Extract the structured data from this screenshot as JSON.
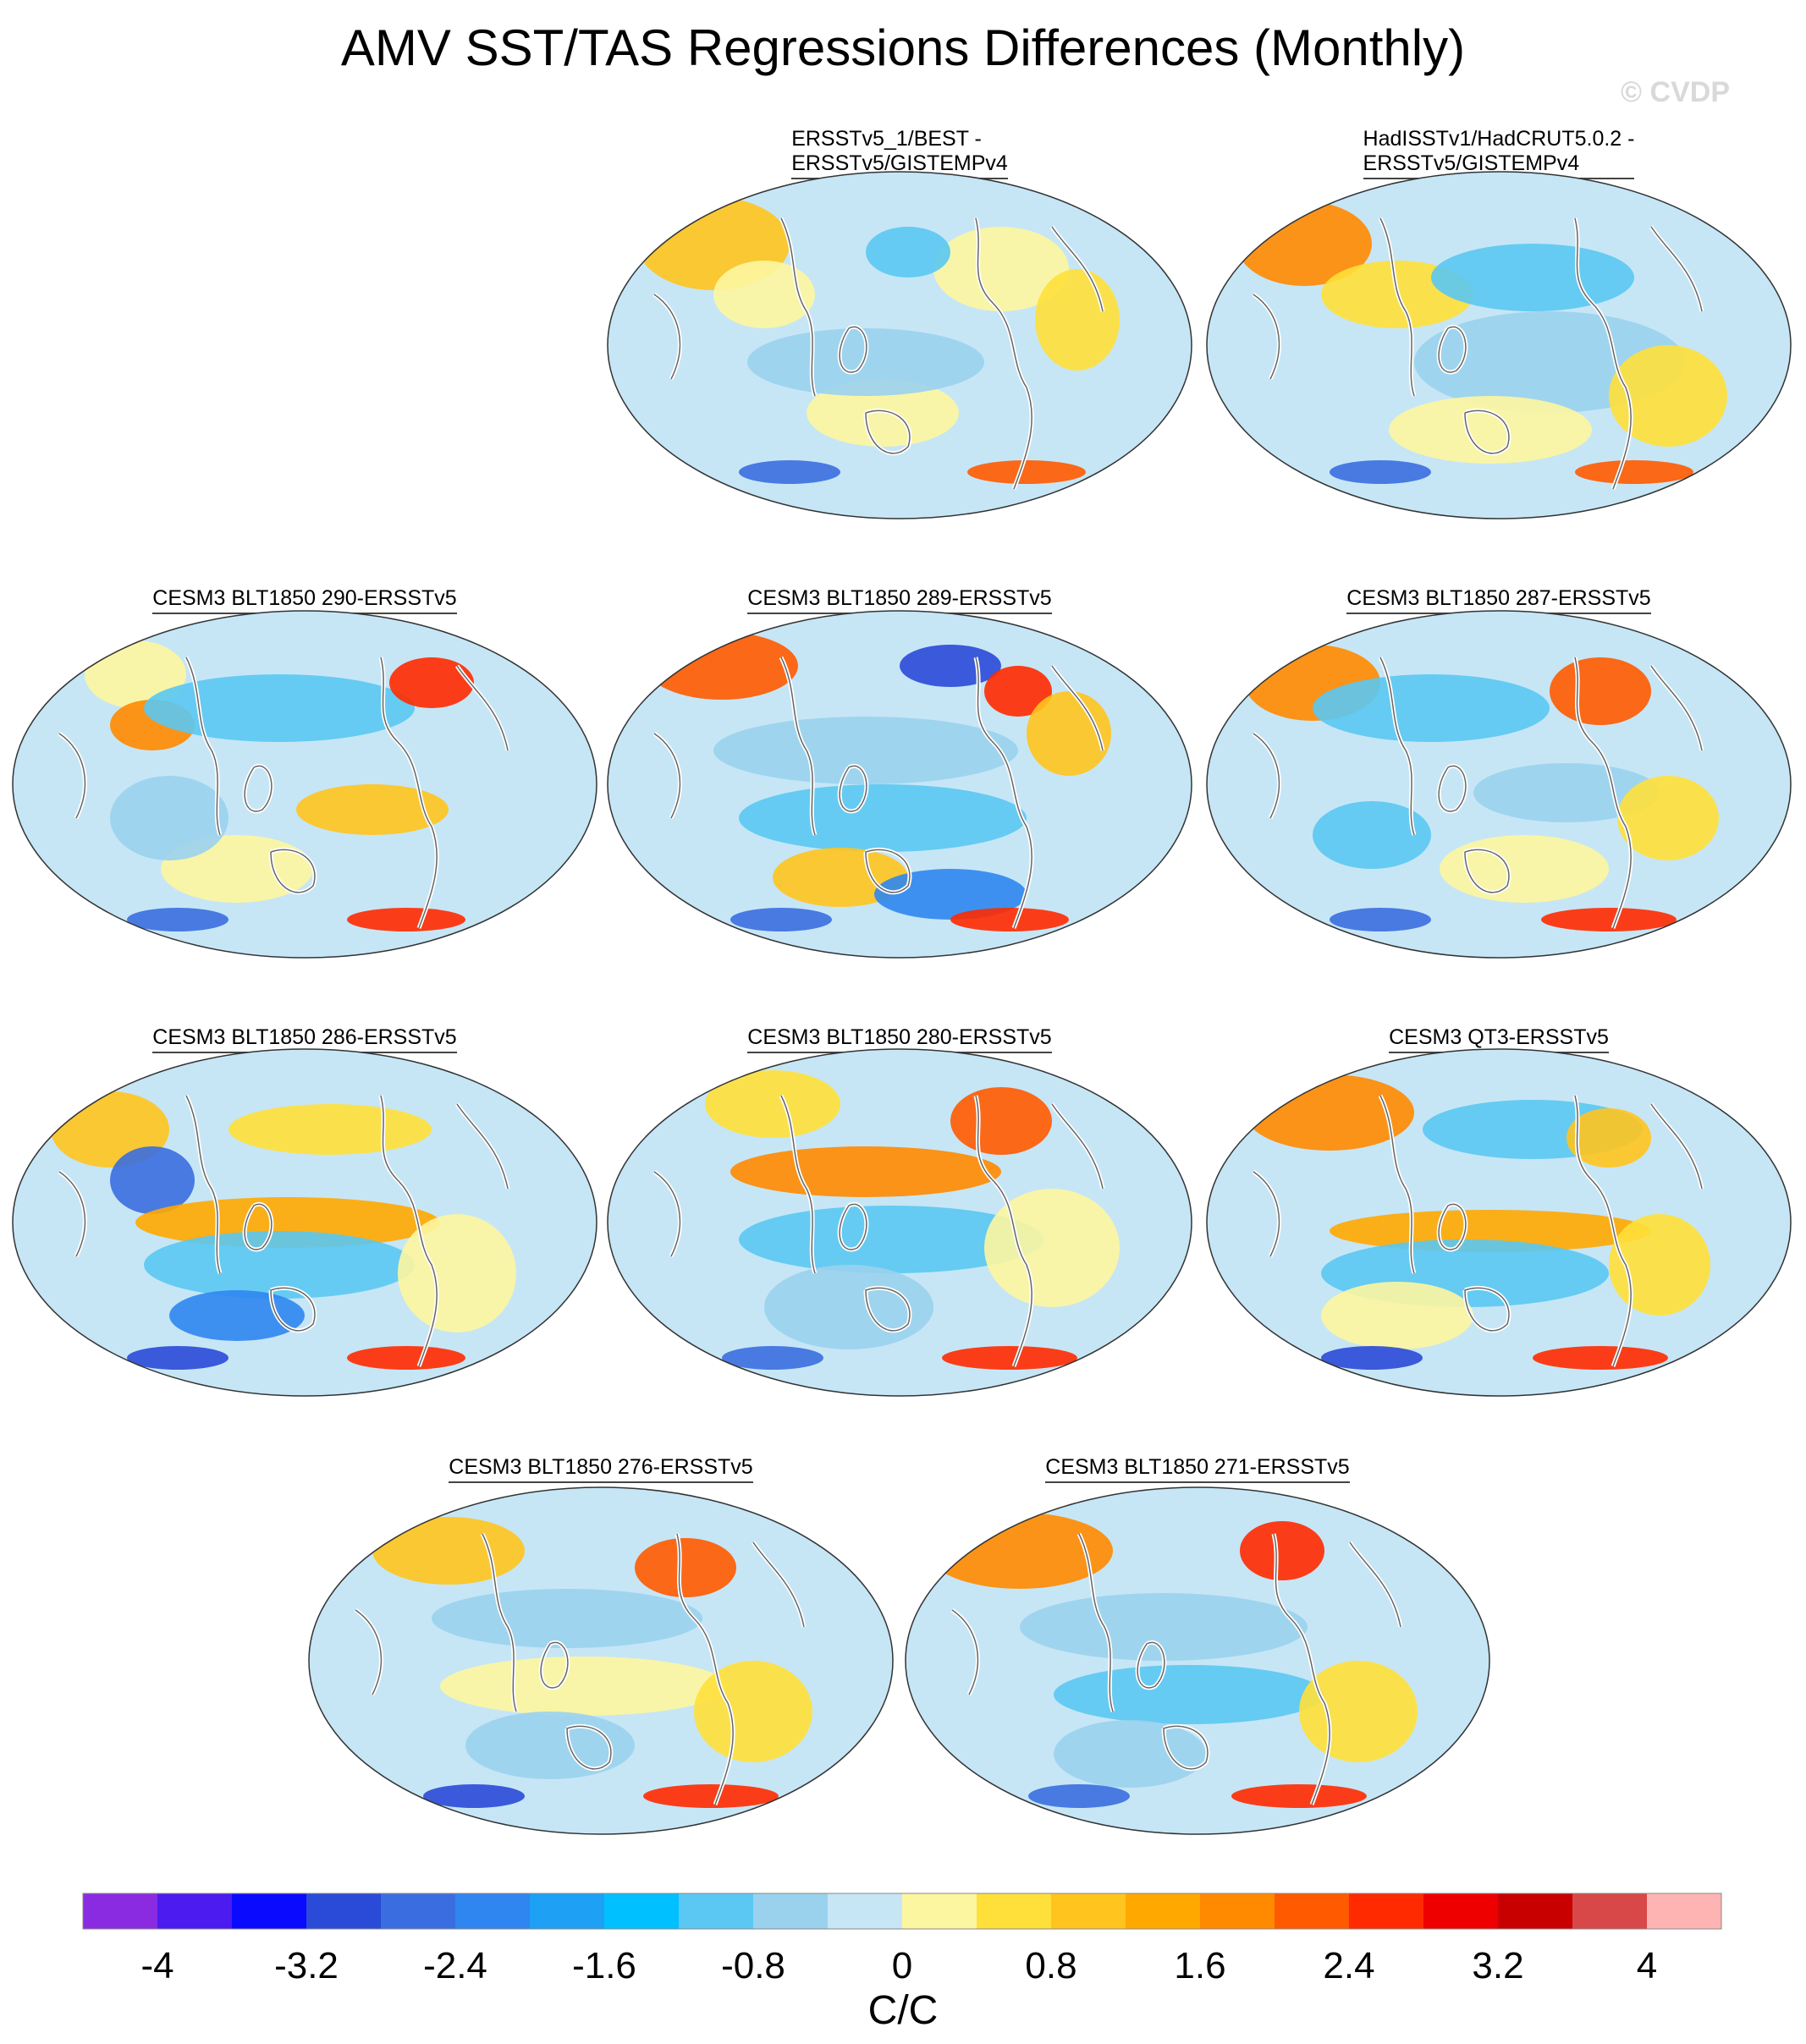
{
  "title": "AMV SST/TAS Regressions Differences (Monthly)",
  "copyright": "© CVDP",
  "panels": [
    {
      "label_lines": [
        "ERSSTv5_1/BEST -",
        "ERSSTv5/GISTEMPv4"
      ]
    },
    {
      "label_lines": [
        "HadISSTv1/HadCRUT5.0.2 -",
        "ERSSTv5/GISTEMPv4"
      ]
    },
    {
      "label_lines": [
        "CESM3 BLT1850 290-ERSSTv5"
      ]
    },
    {
      "label_lines": [
        "CESM3 BLT1850 289-ERSSTv5"
      ]
    },
    {
      "label_lines": [
        "CESM3 BLT1850 287-ERSSTv5"
      ]
    },
    {
      "label_lines": [
        "CESM3 BLT1850 286-ERSSTv5"
      ]
    },
    {
      "label_lines": [
        "CESM3 BLT1850 280-ERSSTv5"
      ]
    },
    {
      "label_lines": [
        "CESM3 QT3-ERSSTv5"
      ]
    },
    {
      "label_lines": [
        "CESM3 BLT1850 276-ERSSTv5"
      ]
    },
    {
      "label_lines": [
        "CESM3 BLT1850 271-ERSSTv5"
      ]
    }
  ],
  "colorbar": {
    "unit": "C/C",
    "tick_labels": [
      "-4",
      "-3.2",
      "-2.4",
      "-1.6",
      "-0.8",
      "0",
      "0.8",
      "1.6",
      "2.4",
      "3.2",
      "4"
    ],
    "colors": [
      "#8a2be2",
      "#4b1bf0",
      "#0a0aff",
      "#2a4ad8",
      "#3a6ee0",
      "#2f86f0",
      "#1ea0f5",
      "#00c0ff",
      "#5ac8f2",
      "#9ad2ee",
      "#c6e6f6",
      "#fdf6a0",
      "#ffe03a",
      "#ffc41e",
      "#ffa800",
      "#ff8a00",
      "#ff5a00",
      "#ff2a00",
      "#ee0000",
      "#c80000",
      "#d84848",
      "#ffb4b4"
    ]
  }
}
